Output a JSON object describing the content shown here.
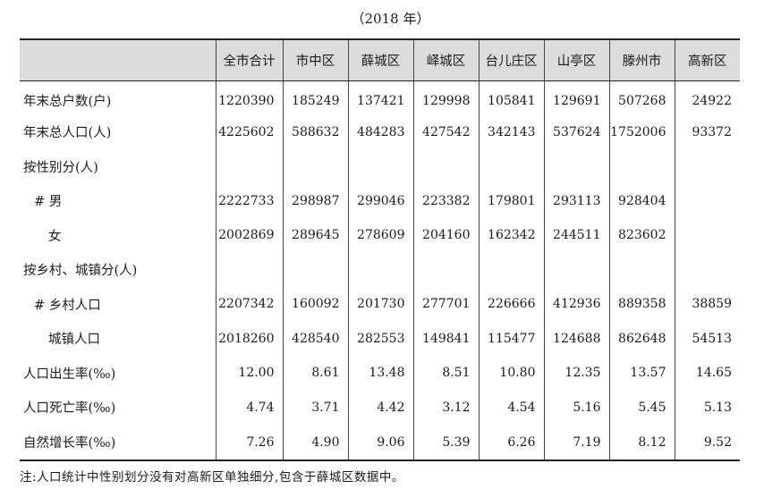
{
  "caption": "（2018 年）",
  "header": {
    "corner": "",
    "columns": [
      "全市合计",
      "市中区",
      "薛城区",
      "峄城区",
      "台儿庄区",
      "山亭区",
      "滕州市",
      "高新区"
    ]
  },
  "rows": [
    {
      "label": "年末总户数(户)",
      "indent": 0,
      "values": [
        "1220390",
        "185249",
        "137421",
        "129998",
        "105841",
        "129691",
        "507268",
        "24922"
      ]
    },
    {
      "label": "年末总人口(人)",
      "indent": 0,
      "values": [
        "4225602",
        "588632",
        "484283",
        "427542",
        "342143",
        "537624",
        "1752006",
        "93372"
      ]
    },
    {
      "label": "按性别分(人)",
      "indent": 0,
      "values": [
        "",
        "",
        "",
        "",
        "",
        "",
        "",
        ""
      ]
    },
    {
      "label": "# 男",
      "indent": 1,
      "values": [
        "2222733",
        "298987",
        "299046",
        "223382",
        "179801",
        "293113",
        "928404",
        ""
      ]
    },
    {
      "label": "女",
      "indent": 2,
      "values": [
        "2002869",
        "289645",
        "278609",
        "204160",
        "162342",
        "244511",
        "823602",
        ""
      ]
    },
    {
      "label": "按乡村、城镇分(人)",
      "indent": 0,
      "values": [
        "",
        "",
        "",
        "",
        "",
        "",
        "",
        ""
      ]
    },
    {
      "label": "# 乡村人口",
      "indent": 1,
      "values": [
        "2207342",
        "160092",
        "201730",
        "277701",
        "226666",
        "412936",
        "889358",
        "38859"
      ]
    },
    {
      "label": "城镇人口",
      "indent": 2,
      "values": [
        "2018260",
        "428540",
        "282553",
        "149841",
        "115477",
        "124688",
        "862648",
        "54513"
      ]
    },
    {
      "label": "人口出生率(‰)",
      "indent": 0,
      "values": [
        "12.00",
        "8.61",
        "13.48",
        "8.51",
        "10.80",
        "12.35",
        "13.57",
        "14.65"
      ]
    },
    {
      "label": "人口死亡率(‰)",
      "indent": 0,
      "values": [
        "4.74",
        "3.71",
        "4.42",
        "3.12",
        "4.54",
        "5.16",
        "5.45",
        "5.13"
      ]
    },
    {
      "label": "自然增长率(‰)",
      "indent": 0,
      "values": [
        "7.26",
        "4.90",
        "9.06",
        "5.39",
        "6.26",
        "7.19",
        "8.12",
        "9.52"
      ]
    }
  ],
  "note": "注:人口统计中性别划分没有对高新区单独细分,包含于薛城区数据中。"
}
